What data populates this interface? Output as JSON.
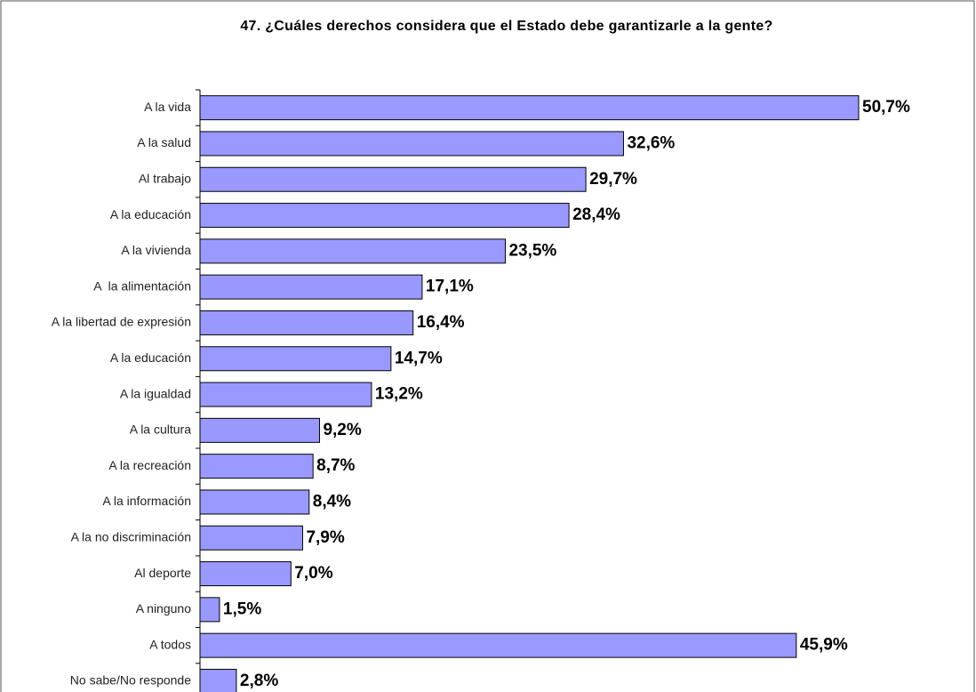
{
  "chart_data": {
    "type": "bar",
    "orientation": "horizontal",
    "title": "47. ¿Cuáles derechos considera que el Estado debe garantizarle a la gente?",
    "categories": [
      "A la vida",
      "A la salud",
      "Al trabajo",
      "A la educación",
      "A la vivienda",
      "A  la alimentación",
      "A la libertad de expresión",
      "A la educación",
      "A la igualdad",
      "A la cultura",
      "A la recreación",
      "A la información",
      "A la no discriminación",
      "Al deporte",
      "A ninguno",
      "A todos",
      "No sabe/No responde"
    ],
    "values": [
      50.7,
      32.6,
      29.7,
      28.4,
      23.5,
      17.1,
      16.4,
      14.7,
      13.2,
      9.2,
      8.7,
      8.4,
      7.9,
      7.0,
      1.5,
      45.9,
      2.8
    ],
    "value_labels": [
      "50,7%",
      "32,6%",
      "29,7%",
      "28,4%",
      "23,5%",
      "17,1%",
      "16,4%",
      "14,7%",
      "13,2%",
      "9,2%",
      "8,7%",
      "8,4%",
      "7,9%",
      "7,0%",
      "1,5%",
      "45,9%",
      "2,8%"
    ],
    "color": "#9999ff"
  }
}
